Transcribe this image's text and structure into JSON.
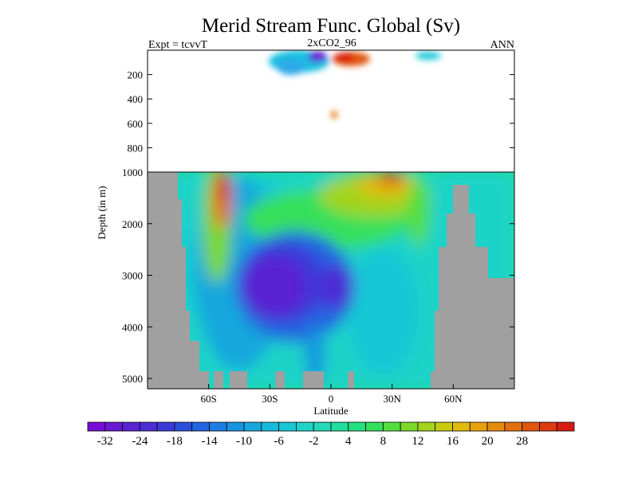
{
  "chart_data": {
    "type": "heatmap",
    "title": "Merid Stream Func. Global (Sv)",
    "subtitle_left": "Expt = tcvvT",
    "subtitle_center": "2xCO2_96",
    "subtitle_right": "ANN",
    "xlabel": "Latitude",
    "ylabel": "Depth (in m)",
    "x_ticks": [
      {
        "value": -60,
        "label": "60S"
      },
      {
        "value": -30,
        "label": "30S"
      },
      {
        "value": 0,
        "label": "0"
      },
      {
        "value": 30,
        "label": "30N"
      },
      {
        "value": 60,
        "label": "60N"
      }
    ],
    "xlim": [
      -90,
      90
    ],
    "upper_panel": {
      "ylim": [
        0,
        1000
      ],
      "y_ticks": [
        200,
        400,
        600,
        800,
        1000
      ],
      "y_tick_labels": [
        "200",
        "400",
        "600",
        "800",
        "1000"
      ]
    },
    "lower_panel": {
      "ylim": [
        1000,
        5200
      ],
      "y_ticks": [
        2000,
        3000,
        4000,
        5000
      ],
      "y_tick_labels": [
        "2000",
        "3000",
        "4000",
        "5000"
      ]
    },
    "colorbar": {
      "levels": [
        -36,
        -32,
        -28,
        -24,
        -21,
        -18,
        -16,
        -14,
        -12,
        -10,
        -8,
        -6,
        -4,
        -2,
        0,
        2,
        4,
        6,
        8,
        10,
        12,
        14,
        16,
        18,
        20,
        24,
        28,
        32
      ],
      "labels": [
        "-32",
        "-24",
        "-18",
        "-14",
        "-10",
        "-6",
        "-2",
        "4",
        "8",
        "12",
        "16",
        "20",
        "28"
      ],
      "colors": [
        "#7a0bd6",
        "#6a17d4",
        "#5a22d2",
        "#4b2ed6",
        "#3b3ad9",
        "#2c4fdc",
        "#2166e0",
        "#1c7ee2",
        "#1893e0",
        "#16a7dd",
        "#16badc",
        "#18c8d6",
        "#1fd3c8",
        "#22dab8",
        "#20dd9e",
        "#25e07e",
        "#34e05c",
        "#52de40",
        "#7ad92a",
        "#a2d41c",
        "#c8cc10",
        "#e0bb0c",
        "#e6a20c",
        "#e58a0d",
        "#e3700e",
        "#e0560f",
        "#dd3a10",
        "#d91a10"
      ]
    },
    "land_color": "#a0a0a0"
  }
}
